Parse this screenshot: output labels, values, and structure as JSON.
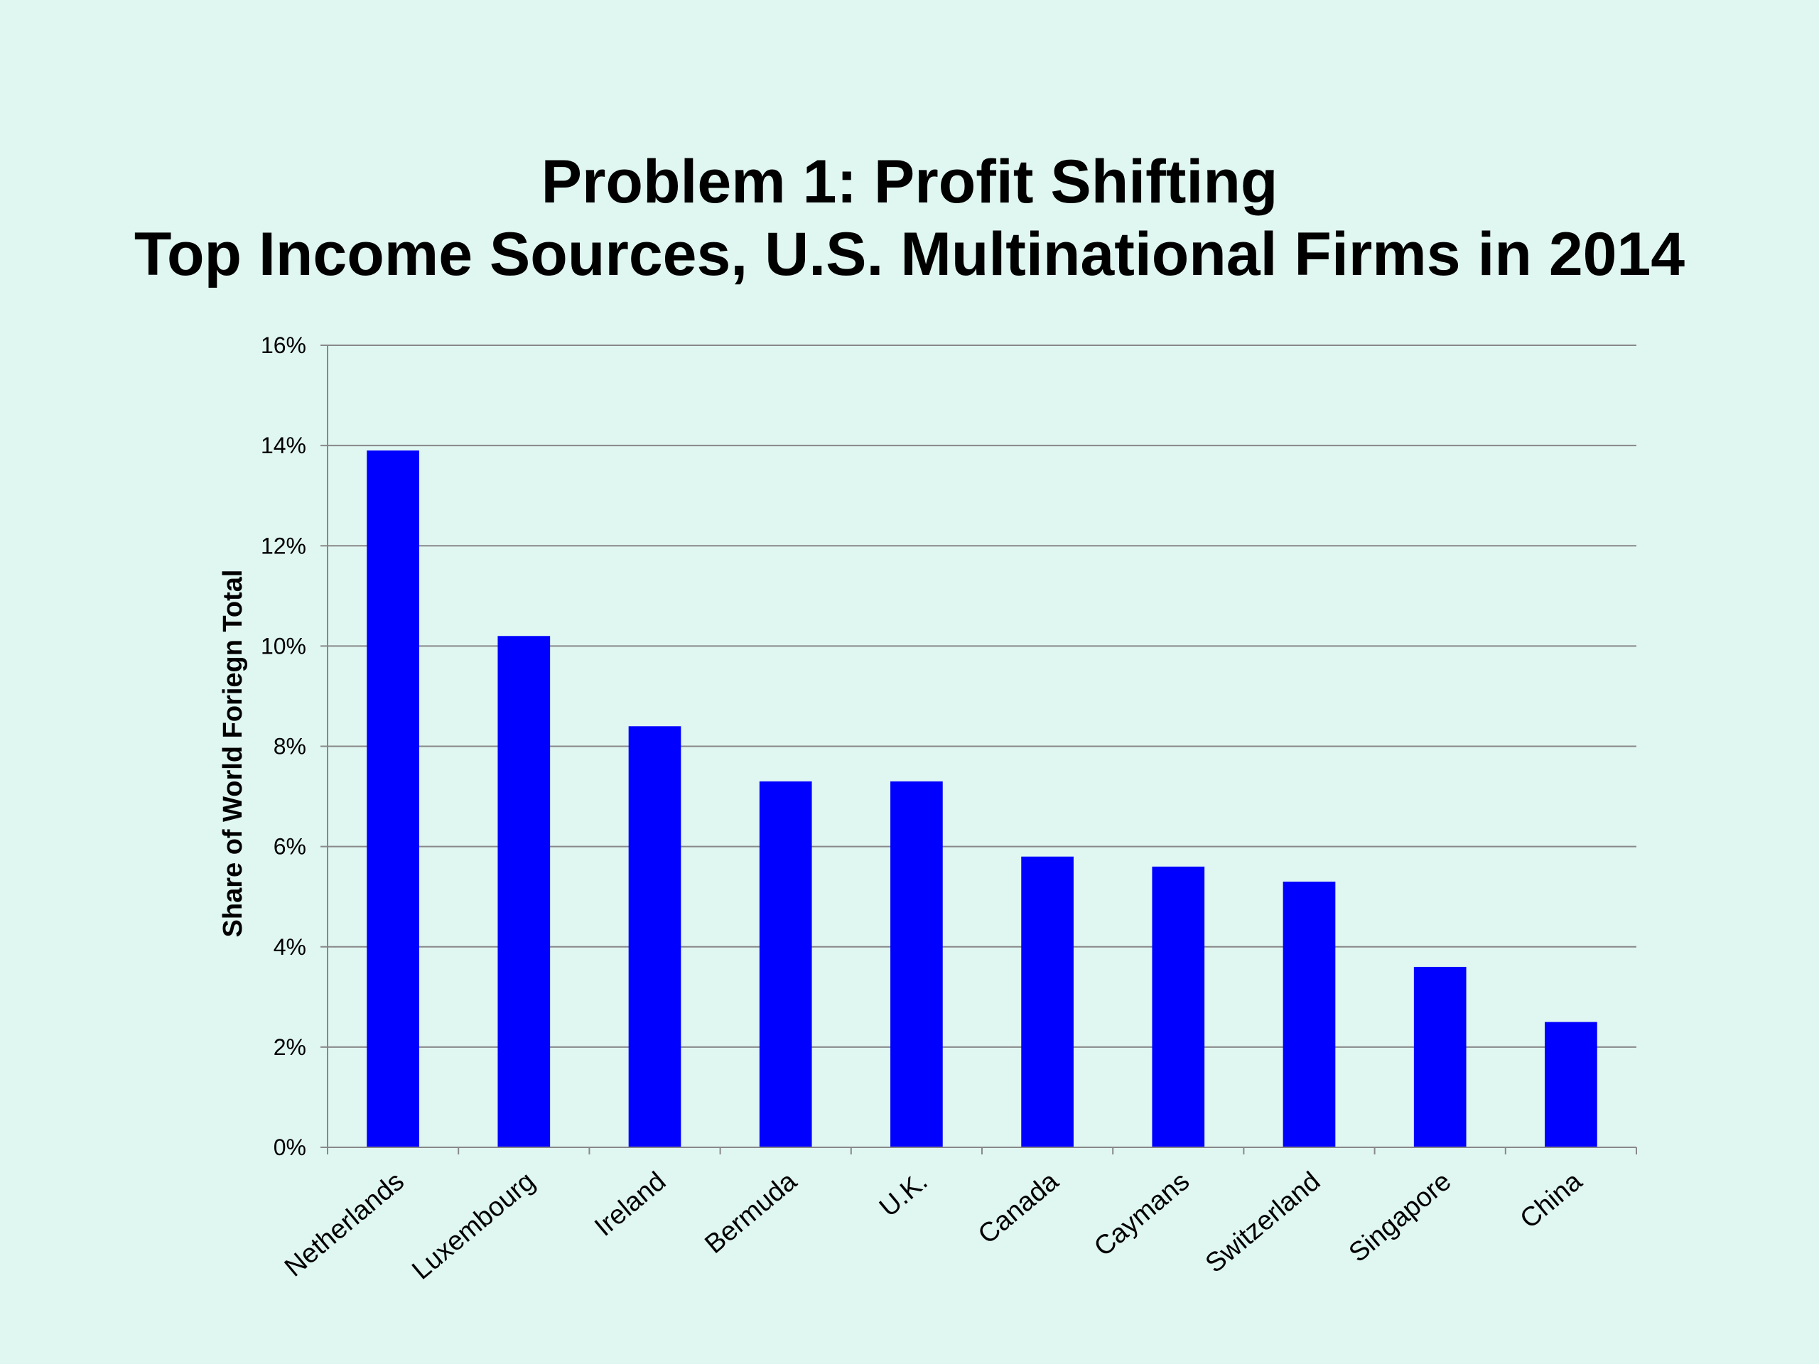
{
  "chart_data": {
    "type": "bar",
    "title": "Problem 1: Profit Shifting",
    "subtitle": "Top Income Sources, U.S. Multinational Firms in 2014",
    "ylabel": "Share of World Foriegn Total",
    "xlabel": "",
    "categories": [
      "Netherlands",
      "Luxembourg",
      "Ireland",
      "Bermuda",
      "U.K.",
      "Canada",
      "Caymans",
      "Switzerland",
      "Singapore",
      "China"
    ],
    "values": [
      13.9,
      10.2,
      8.4,
      7.3,
      7.3,
      5.8,
      5.6,
      5.3,
      3.6,
      2.5
    ],
    "value_unit": "percent",
    "ylim": [
      0,
      16
    ],
    "yticks": [
      0,
      2,
      4,
      6,
      8,
      10,
      12,
      14,
      16
    ],
    "ytick_labels": [
      "0%",
      "2%",
      "4%",
      "6%",
      "8%",
      "10%",
      "12%",
      "14%",
      "16%"
    ],
    "grid": "horizontal",
    "legend": "none",
    "bar_color": "#0000ff",
    "grid_color": "#888888",
    "background_color": "#e0f6f1"
  }
}
